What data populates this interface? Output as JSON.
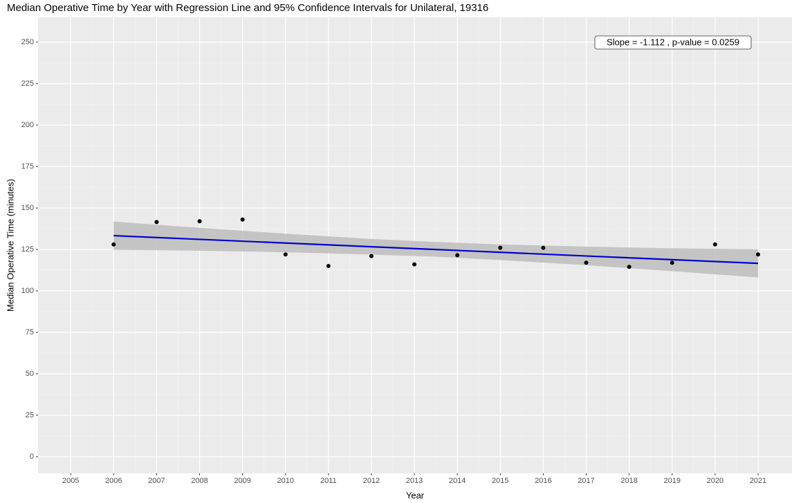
{
  "chart_data": {
    "type": "scatter",
    "title": "Median Operative Time by Year with Regression Line and 95% Confidence Intervals for Unilateral, 19316",
    "x_label": "Year",
    "y_label": "Median Operative Time (minutes)",
    "annotation": "Slope = -1.112 , p-value = 0.0259",
    "x": [
      2006,
      2007,
      2008,
      2009,
      2010,
      2011,
      2012,
      2013,
      2014,
      2015,
      2016,
      2017,
      2018,
      2019,
      2020,
      2021
    ],
    "values": [
      128,
      141.5,
      142,
      143,
      122,
      115,
      121,
      116,
      121.5,
      126,
      126,
      117,
      114.5,
      117,
      128,
      122
    ],
    "color": "#000000",
    "line": {
      "x": [
        2006,
        2021
      ],
      "values": [
        133.3,
        116.6
      ],
      "color": "#0000cc"
    },
    "band": {
      "x": [
        2006,
        2008,
        2010,
        2012,
        2013.5,
        2015,
        2017,
        2019,
        2021
      ],
      "upper": [
        141.8,
        138.0,
        134.5,
        131.3,
        129.5,
        128.0,
        126.7,
        125.7,
        125.1
      ],
      "lower": [
        124.8,
        124.2,
        123.3,
        121.9,
        120.6,
        118.6,
        115.5,
        111.9,
        108.1
      ],
      "color": "#bdbdbd"
    },
    "xlim": [
      2004.24,
      2021.79
    ],
    "ylim": [
      -10,
      265
    ],
    "xticks": [
      2005,
      2006,
      2007,
      2008,
      2009,
      2010,
      2011,
      2012,
      2013,
      2014,
      2015,
      2016,
      2017,
      2018,
      2019,
      2020,
      2021
    ],
    "yticks": [
      0,
      25,
      50,
      75,
      100,
      125,
      150,
      175,
      200,
      225,
      250
    ],
    "grid": true
  }
}
